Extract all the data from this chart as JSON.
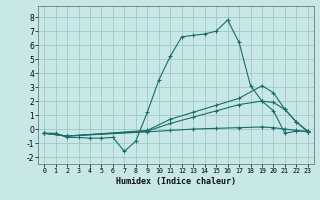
{
  "title": "",
  "xlabel": "Humidex (Indice chaleur)",
  "xlim": [
    -0.5,
    23.5
  ],
  "ylim": [
    -2.5,
    8.8
  ],
  "yticks": [
    -2,
    -1,
    0,
    1,
    2,
    3,
    4,
    5,
    6,
    7,
    8
  ],
  "xticks": [
    0,
    1,
    2,
    3,
    4,
    5,
    6,
    7,
    8,
    9,
    10,
    11,
    12,
    13,
    14,
    15,
    16,
    17,
    18,
    19,
    20,
    21,
    22,
    23
  ],
  "bg_color": "#c8e8e8",
  "grid_color": "#9bbfbf",
  "line_color": "#1a6b6b",
  "series": [
    {
      "x": [
        0,
        1,
        2,
        3,
        4,
        5,
        6,
        7,
        8,
        9,
        10,
        11,
        12,
        13,
        14,
        15,
        16,
        17,
        18,
        19,
        20,
        21,
        22,
        23
      ],
      "y": [
        -0.3,
        -0.3,
        -0.6,
        -0.6,
        -0.65,
        -0.65,
        -0.6,
        -1.6,
        -0.85,
        1.2,
        3.5,
        5.2,
        6.6,
        6.7,
        6.8,
        7.0,
        7.8,
        6.2,
        3.1,
        2.0,
        1.3,
        -0.3,
        -0.15,
        -0.15
      ]
    },
    {
      "x": [
        0,
        2,
        9,
        11,
        13,
        15,
        17,
        19,
        20,
        21,
        22,
        23
      ],
      "y": [
        -0.3,
        -0.5,
        -0.1,
        0.7,
        1.2,
        1.7,
        2.2,
        3.1,
        2.6,
        1.4,
        0.5,
        -0.15
      ]
    },
    {
      "x": [
        0,
        2,
        9,
        11,
        13,
        15,
        17,
        19,
        20,
        21,
        22,
        23
      ],
      "y": [
        -0.3,
        -0.5,
        -0.15,
        0.4,
        0.85,
        1.3,
        1.75,
        2.0,
        1.9,
        1.4,
        0.5,
        -0.2
      ]
    },
    {
      "x": [
        0,
        2,
        9,
        11,
        13,
        15,
        17,
        19,
        20,
        21,
        22,
        23
      ],
      "y": [
        -0.3,
        -0.5,
        -0.2,
        -0.1,
        0.0,
        0.05,
        0.1,
        0.15,
        0.1,
        0.0,
        -0.1,
        -0.2
      ]
    }
  ]
}
